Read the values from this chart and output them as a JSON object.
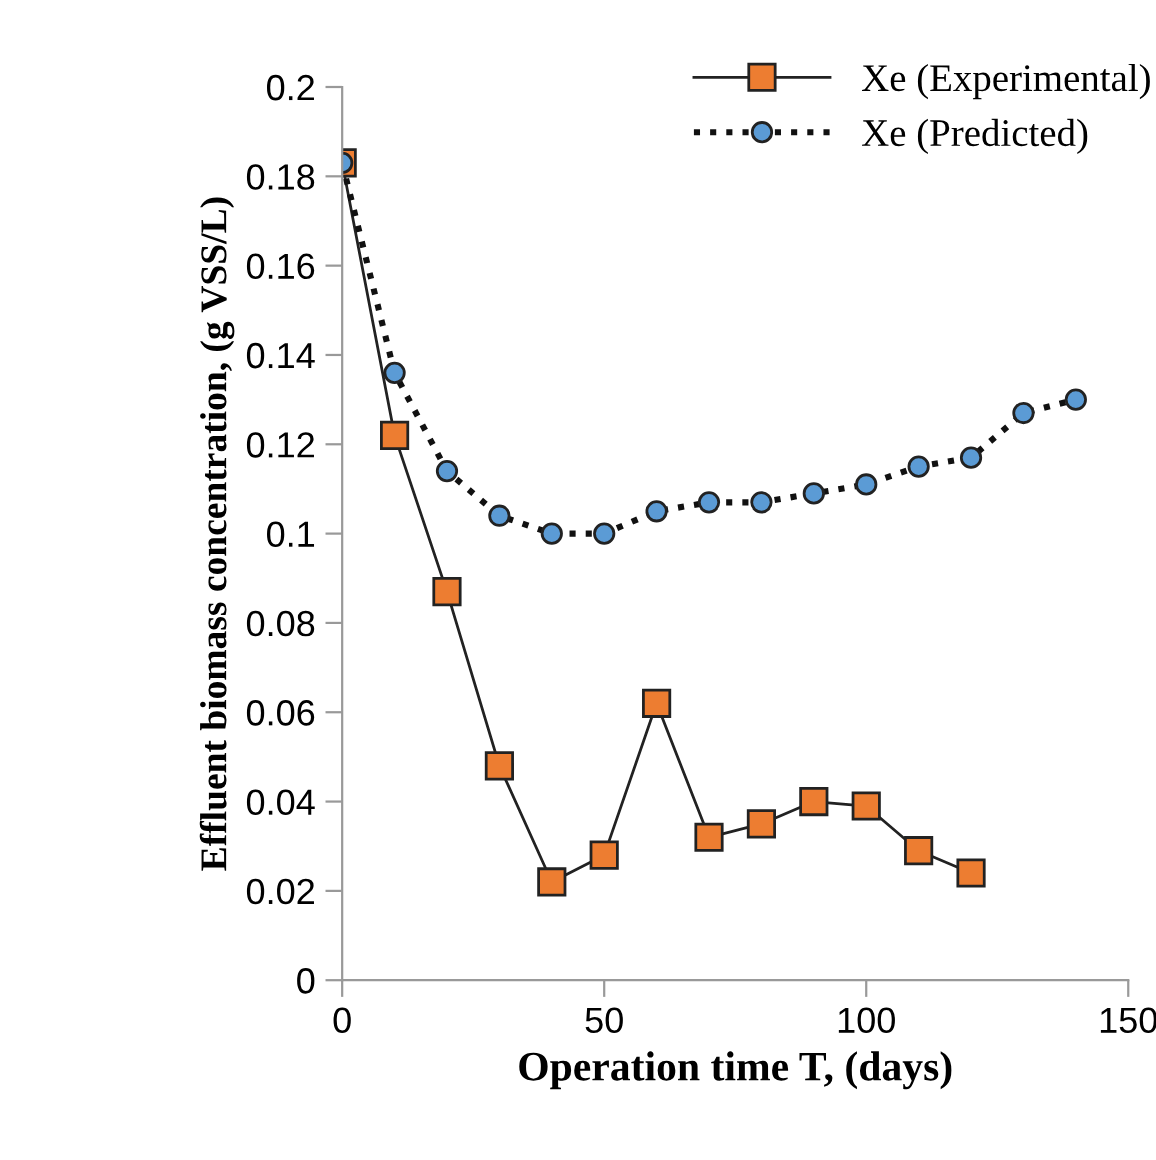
{
  "chart_data": {
    "type": "line",
    "xlabel": "Operation time T, (days)",
    "ylabel": "Effluent biomass concentration, (g VSS/L)",
    "xlim": [
      0,
      150
    ],
    "xticks": [
      0,
      50,
      100,
      150
    ],
    "ylim": [
      0,
      0.2
    ],
    "yticks": [
      0,
      0.02,
      0.04,
      0.06,
      0.08,
      0.1,
      0.12,
      0.14,
      0.16,
      0.18,
      0.2
    ],
    "grid": false,
    "legend": "top right",
    "series": [
      {
        "name": "Xe (Experimental)",
        "color": "#ed7d31",
        "marker": "square",
        "line_style": "solid",
        "x": [
          0,
          10,
          20,
          30,
          40,
          50,
          60,
          70,
          80,
          90,
          100,
          110,
          120
        ],
        "values": [
          0.183,
          0.122,
          0.087,
          0.048,
          0.022,
          0.028,
          0.062,
          0.032,
          0.035,
          0.04,
          0.039,
          0.029,
          0.024
        ]
      },
      {
        "name": "Xe (Predicted)",
        "color": "#5b9bd5",
        "marker": "circle",
        "line_style": "dotted",
        "x": [
          0,
          10,
          20,
          30,
          40,
          50,
          60,
          70,
          80,
          90,
          100,
          110,
          120,
          130,
          140
        ],
        "values": [
          0.183,
          0.136,
          0.114,
          0.104,
          0.1,
          0.1,
          0.105,
          0.107,
          0.107,
          0.109,
          0.111,
          0.115,
          0.117,
          0.127,
          0.13
        ]
      }
    ]
  }
}
